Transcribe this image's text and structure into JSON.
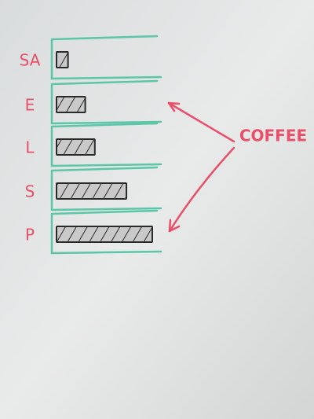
{
  "chart_data": {
    "type": "bar",
    "orientation": "horizontal",
    "categories": [
      "SA",
      "E",
      "L",
      "S",
      "P"
    ],
    "values": [
      12,
      30,
      40,
      73,
      100
    ],
    "color": "#2a2a2a",
    "annotations": [
      "COFFEE"
    ]
  }
}
